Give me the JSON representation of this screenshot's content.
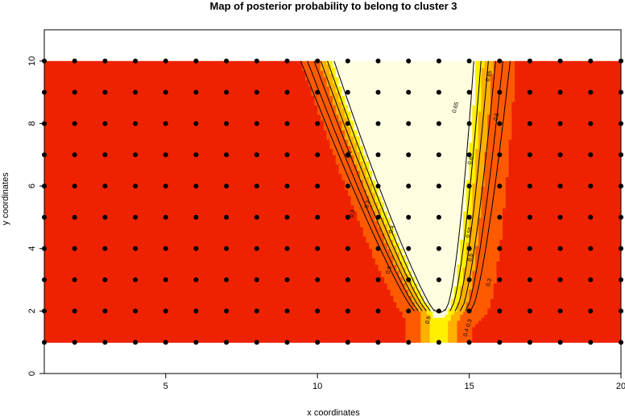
{
  "chart_data": {
    "type": "heatmap",
    "title": "Map of posterior probability to belong to cluster  3",
    "xlabel": "x coordinates",
    "ylabel": "y coordinates",
    "xlim": [
      1,
      20
    ],
    "ylim": [
      0,
      11
    ],
    "x_ticks": [
      5,
      10,
      15,
      20
    ],
    "y_ticks": [
      0,
      2,
      4,
      6,
      8,
      10
    ],
    "grid": false,
    "colors": {
      "low": "#ee2200",
      "mid_low": "#ff5a00",
      "mid": "#ffb000",
      "mid_high": "#fff000",
      "high": "#fffde0"
    },
    "field_extent": {
      "x": [
        1,
        20
      ],
      "y": [
        1,
        10
      ]
    },
    "points": {
      "x": [
        1,
        2,
        3,
        4,
        5,
        6,
        7,
        8,
        9,
        10,
        11,
        12,
        13,
        14,
        15,
        16,
        17,
        18,
        19,
        20
      ],
      "y": [
        1,
        2,
        3,
        4,
        5,
        6,
        7,
        8,
        9,
        10
      ],
      "color": "#000000"
    },
    "contour_labels": [
      {
        "text": "0.65",
        "x": 14.6,
        "y": 8.5
      },
      {
        "text": "0.45",
        "x": 15.7,
        "y": 9.5
      },
      {
        "text": "0.5",
        "x": 15.95,
        "y": 8.2
      },
      {
        "text": "0.6",
        "x": 15.1,
        "y": 6.8
      },
      {
        "text": "0.55",
        "x": 15.05,
        "y": 4.5
      },
      {
        "text": "0.5",
        "x": 15.1,
        "y": 3.7
      },
      {
        "text": "0.3",
        "x": 15.7,
        "y": 2.9
      },
      {
        "text": "0.3",
        "x": 15.05,
        "y": 1.6
      },
      {
        "text": "0.4",
        "x": 14.95,
        "y": 1.3
      },
      {
        "text": "0.1",
        "x": 11.1,
        "y": 7.0
      },
      {
        "text": "0.2",
        "x": 11.7,
        "y": 5.4
      },
      {
        "text": "0.3",
        "x": 11.2,
        "y": 5.1
      },
      {
        "text": "0.4",
        "x": 12.5,
        "y": 4.6
      },
      {
        "text": "0.5",
        "x": 12.4,
        "y": 3.3
      },
      {
        "text": "0.5",
        "x": 13.7,
        "y": 1.7
      }
    ]
  }
}
